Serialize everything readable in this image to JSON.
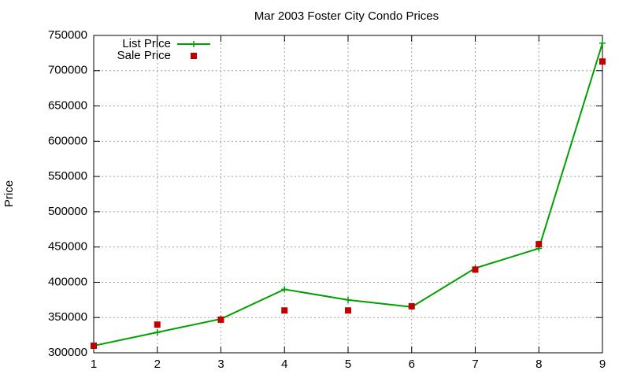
{
  "chart_data": {
    "type": "line",
    "title": "Mar 2003 Foster City Condo Prices",
    "ylabel": "Price",
    "x": [
      1,
      2,
      3,
      4,
      5,
      6,
      7,
      8,
      9
    ],
    "series": [
      {
        "name": "List Price",
        "color": "#00a000",
        "mode": "linespoints",
        "marker": "plus",
        "values": [
          310000,
          329000,
          348000,
          390000,
          375000,
          365000,
          420000,
          448000,
          739000
        ]
      },
      {
        "name": "Sale Price",
        "color": "#c00000",
        "mode": "points",
        "marker": "square",
        "values": [
          310000,
          340000,
          347000,
          360000,
          360000,
          366000,
          418000,
          454000,
          713000
        ]
      }
    ],
    "xlim": [
      1,
      9
    ],
    "xticks": [
      1,
      2,
      3,
      4,
      5,
      6,
      7,
      8,
      9
    ],
    "ylim": [
      300000,
      750000
    ],
    "yticks": [
      300000,
      350000,
      400000,
      450000,
      500000,
      550000,
      600000,
      650000,
      700000,
      750000
    ],
    "grid": true,
    "legend": "top-left"
  }
}
